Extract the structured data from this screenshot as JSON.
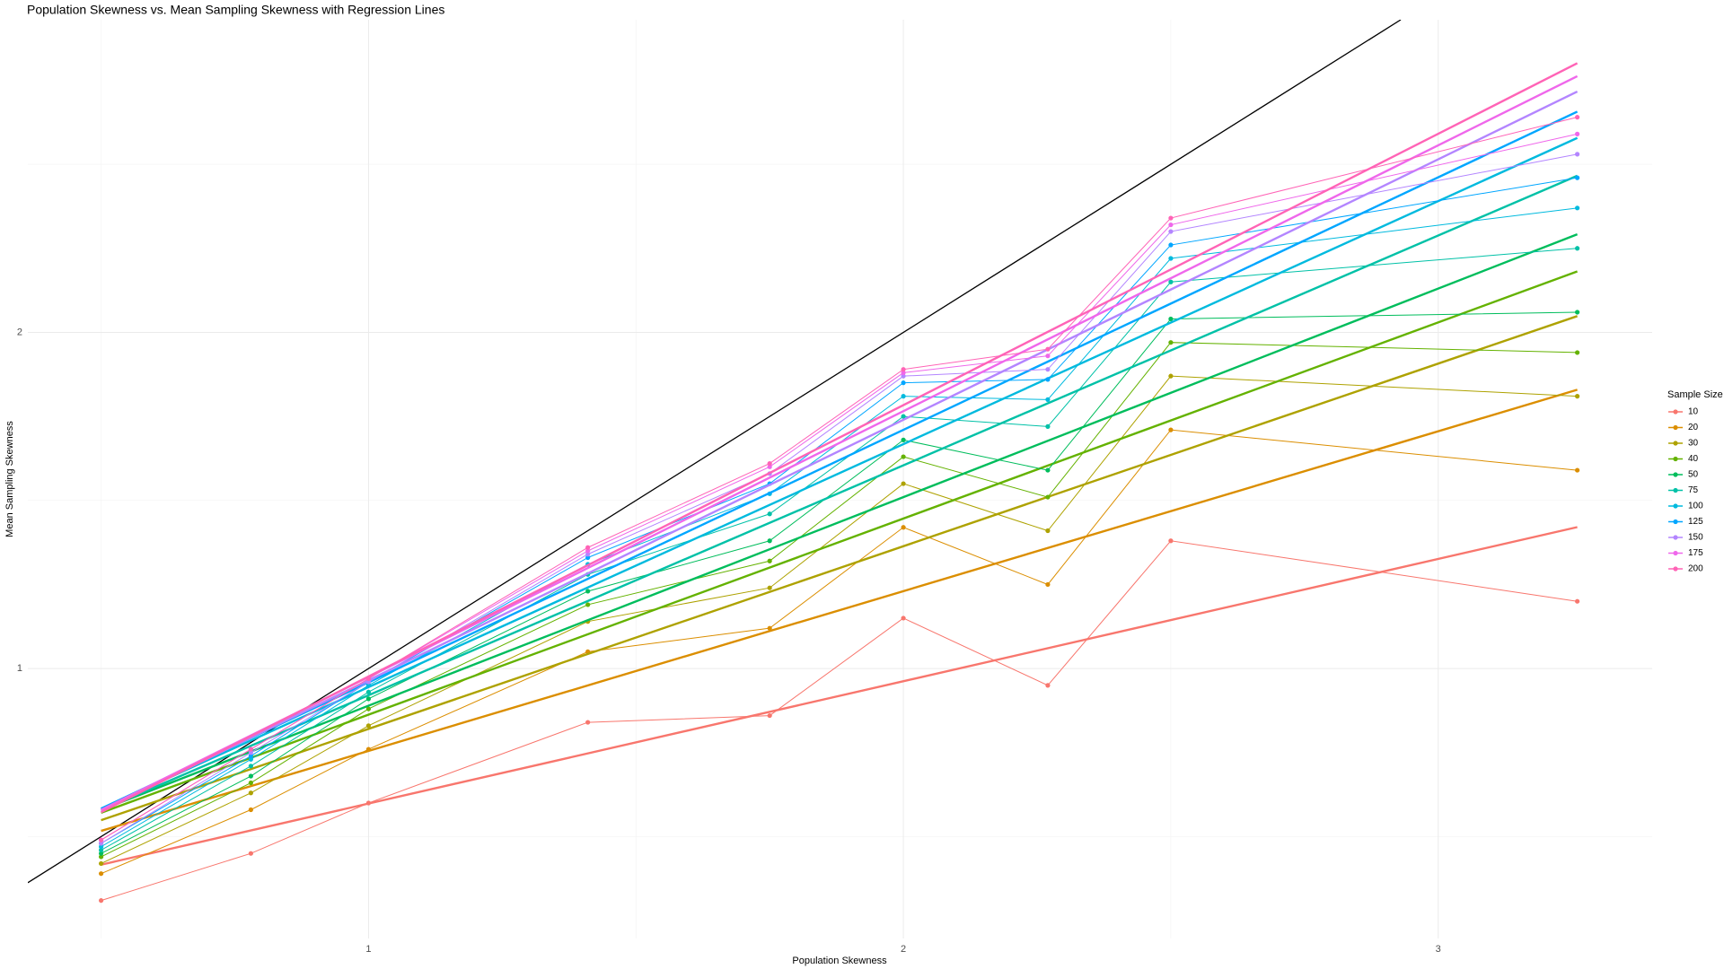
{
  "chart_data": {
    "type": "line",
    "title": "Population Skewness vs. Mean Sampling Skewness with Regression Lines",
    "x_label": "Population Skewness",
    "y_label": "Mean Sampling Skewness",
    "legend_title": "Sample Size",
    "legend_position": "right",
    "x": [
      0.5,
      0.78,
      1.0,
      1.41,
      1.75,
      2.0,
      2.27,
      2.5,
      3.26
    ],
    "series": [
      {
        "name": "10",
        "color": "#F8766D",
        "values": [
          0.31,
          0.45,
          0.6,
          0.84,
          0.86,
          1.15,
          0.95,
          1.38,
          1.2
        ]
      },
      {
        "name": "20",
        "color": "#DB8E00",
        "values": [
          0.39,
          0.58,
          0.76,
          1.05,
          1.12,
          1.42,
          1.25,
          1.71,
          1.59
        ]
      },
      {
        "name": "30",
        "color": "#AEA200",
        "values": [
          0.42,
          0.63,
          0.83,
          1.14,
          1.24,
          1.55,
          1.41,
          1.87,
          1.81
        ]
      },
      {
        "name": "40",
        "color": "#64B200",
        "values": [
          0.44,
          0.66,
          0.88,
          1.19,
          1.32,
          1.63,
          1.51,
          1.97,
          1.94
        ]
      },
      {
        "name": "50",
        "color": "#00BD5C",
        "values": [
          0.45,
          0.68,
          0.91,
          1.23,
          1.38,
          1.68,
          1.59,
          2.04,
          2.06
        ]
      },
      {
        "name": "75",
        "color": "#00C1A7",
        "values": [
          0.46,
          0.71,
          0.93,
          1.28,
          1.46,
          1.75,
          1.72,
          2.15,
          2.25
        ]
      },
      {
        "name": "100",
        "color": "#00BADE",
        "values": [
          0.47,
          0.73,
          0.95,
          1.31,
          1.52,
          1.81,
          1.8,
          2.22,
          2.37
        ]
      },
      {
        "name": "125",
        "color": "#00A6FF",
        "values": [
          0.48,
          0.74,
          0.96,
          1.33,
          1.55,
          1.85,
          1.86,
          2.26,
          2.46
        ]
      },
      {
        "name": "150",
        "color": "#B385FF",
        "values": [
          0.48,
          0.75,
          0.96,
          1.34,
          1.58,
          1.87,
          1.89,
          2.3,
          2.53
        ]
      },
      {
        "name": "175",
        "color": "#EF67EB",
        "values": [
          0.49,
          0.76,
          0.97,
          1.35,
          1.6,
          1.88,
          1.93,
          2.32,
          2.59
        ]
      },
      {
        "name": "200",
        "color": "#FF63B6",
        "values": [
          0.49,
          0.76,
          0.97,
          1.36,
          1.61,
          1.89,
          1.95,
          2.34,
          2.64
        ]
      }
    ],
    "xlim": [
      0.363,
      3.4
    ],
    "ylim": [
      0.197,
      2.93
    ],
    "xticks": [
      1,
      2,
      3
    ],
    "yticks": [
      1,
      2
    ],
    "x_minor_ticks": [
      0.5,
      1.5,
      2.5
    ],
    "y_minor_ticks": [
      0.5,
      1.5,
      2.5
    ],
    "grid": true,
    "regression_lines": true,
    "identity_line": true
  }
}
